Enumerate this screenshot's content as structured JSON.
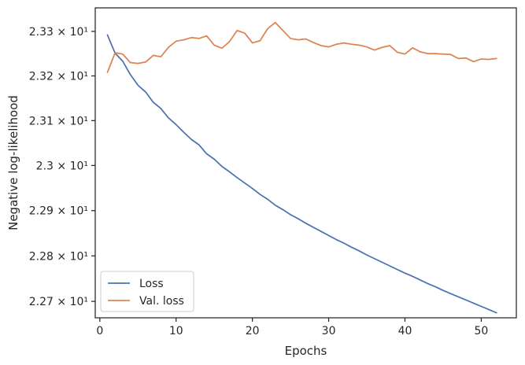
{
  "chart_data": {
    "type": "line",
    "xlabel": "Epochs",
    "ylabel": "Negative log-likelihood",
    "xlim": [
      -0.6,
      54.6
    ],
    "ylim": [
      22.664,
      23.353
    ],
    "y_scale": "log",
    "xticks": [
      0,
      10,
      20,
      30,
      40,
      50
    ],
    "yticks": [
      {
        "value": 22.7,
        "label": "2.27 × 10¹"
      },
      {
        "value": 22.8,
        "label": "2.28 × 10¹"
      },
      {
        "value": 22.9,
        "label": "2.29 × 10¹"
      },
      {
        "value": 23.0,
        "label": "2.3 × 10¹"
      },
      {
        "value": 23.1,
        "label": "2.31 × 10¹"
      },
      {
        "value": 23.2,
        "label": "2.32 × 10¹"
      },
      {
        "value": 23.3,
        "label": "2.33 × 10¹"
      }
    ],
    "grid": false,
    "legend_position": "lower-left",
    "x": [
      1,
      2,
      3,
      4,
      5,
      6,
      7,
      8,
      9,
      10,
      11,
      12,
      13,
      14,
      15,
      16,
      17,
      18,
      19,
      20,
      21,
      22,
      23,
      24,
      25,
      26,
      27,
      28,
      29,
      30,
      31,
      32,
      33,
      34,
      35,
      36,
      37,
      38,
      39,
      40,
      41,
      42,
      43,
      44,
      45,
      46,
      47,
      48,
      49,
      50,
      51,
      52
    ],
    "series": [
      {
        "name": "Loss",
        "color": "#4c72b0",
        "values": [
          23.292,
          23.251,
          23.233,
          23.203,
          23.179,
          23.164,
          23.141,
          23.127,
          23.106,
          23.091,
          23.074,
          23.058,
          23.046,
          23.026,
          23.014,
          22.998,
          22.986,
          22.973,
          22.961,
          22.949,
          22.936,
          22.925,
          22.912,
          22.902,
          22.891,
          22.882,
          22.872,
          22.863,
          22.854,
          22.845,
          22.836,
          22.828,
          22.819,
          22.811,
          22.802,
          22.794,
          22.786,
          22.778,
          22.77,
          22.762,
          22.755,
          22.747,
          22.739,
          22.732,
          22.724,
          22.717,
          22.71,
          22.703,
          22.696,
          22.689,
          22.682,
          22.675
        ]
      },
      {
        "name": "Val. loss",
        "color": "#dd8452",
        "values": [
          23.208,
          23.252,
          23.249,
          23.23,
          23.228,
          23.231,
          23.246,
          23.243,
          23.264,
          23.278,
          23.281,
          23.286,
          23.284,
          23.29,
          23.269,
          23.262,
          23.277,
          23.302,
          23.296,
          23.274,
          23.279,
          23.306,
          23.32,
          23.302,
          23.284,
          23.281,
          23.283,
          23.275,
          23.268,
          23.265,
          23.271,
          23.274,
          23.271,
          23.269,
          23.265,
          23.258,
          23.264,
          23.268,
          23.253,
          23.249,
          23.263,
          23.254,
          23.25,
          23.25,
          23.249,
          23.248,
          23.239,
          23.24,
          23.232,
          23.238,
          23.237,
          23.239
        ]
      }
    ]
  }
}
